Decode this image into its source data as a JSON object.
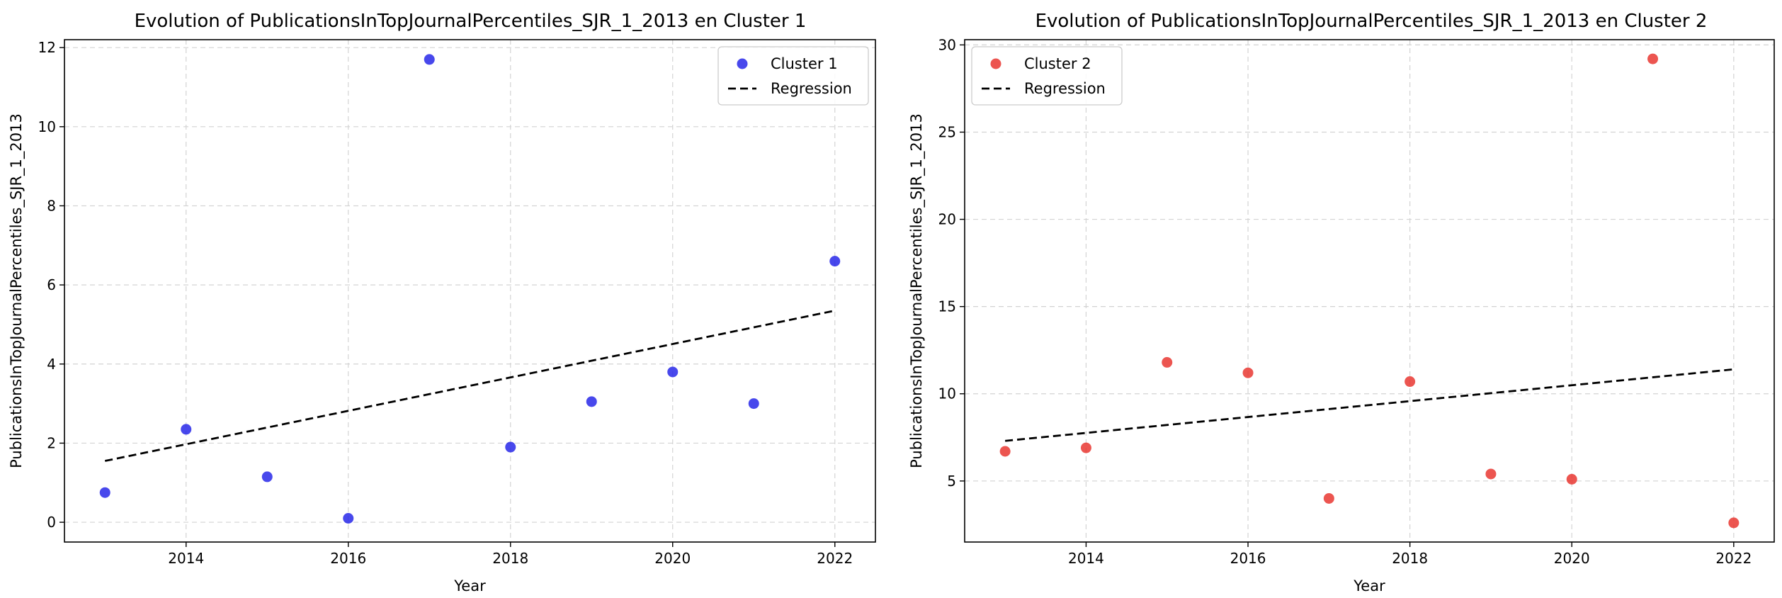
{
  "chart_data": [
    {
      "type": "scatter",
      "title": "Evolution of PublicationsInTopJournalPercentiles_SJR_1_2013 en Cluster 1",
      "xlabel": "Year",
      "ylabel": "PublicationsInTopJournalPercentiles_SJR_1_2013",
      "xlim": [
        2012.5,
        2022.5
      ],
      "ylim": [
        -0.5,
        12.2
      ],
      "xticks": [
        2014,
        2016,
        2018,
        2020,
        2022
      ],
      "yticks": [
        0,
        2,
        4,
        6,
        8,
        10,
        12
      ],
      "grid": true,
      "legend_position": "top-right",
      "color": "#2020e8",
      "series": [
        {
          "name": "Cluster 1",
          "x": [
            2013,
            2014,
            2015,
            2016,
            2017,
            2018,
            2019,
            2020,
            2021,
            2022
          ],
          "y": [
            0.75,
            2.35,
            1.15,
            0.1,
            11.7,
            1.9,
            3.05,
            3.8,
            3.0,
            6.6
          ]
        },
        {
          "name": "Regression",
          "x": [
            2013,
            2022
          ],
          "y": [
            1.55,
            5.35
          ]
        }
      ]
    },
    {
      "type": "scatter",
      "title": "Evolution of PublicationsInTopJournalPercentiles_SJR_1_2013 en Cluster 2",
      "xlabel": "Year",
      "ylabel": "PublicationsInTopJournalPercentiles_SJR_1_2013",
      "xlim": [
        2012.5,
        2022.5
      ],
      "ylim": [
        1.5,
        30.3
      ],
      "xticks": [
        2014,
        2016,
        2018,
        2020,
        2022
      ],
      "yticks": [
        5,
        10,
        15,
        20,
        25,
        30
      ],
      "grid": true,
      "legend_position": "top-left",
      "color": "#e8302a",
      "series": [
        {
          "name": "Cluster 2",
          "x": [
            2013,
            2014,
            2015,
            2016,
            2017,
            2018,
            2019,
            2020,
            2021,
            2022
          ],
          "y": [
            6.7,
            6.9,
            11.8,
            11.2,
            4.0,
            10.7,
            5.4,
            5.1,
            29.2,
            2.6
          ]
        },
        {
          "name": "Regression",
          "x": [
            2013,
            2022
          ],
          "y": [
            7.3,
            11.4
          ]
        }
      ]
    }
  ]
}
